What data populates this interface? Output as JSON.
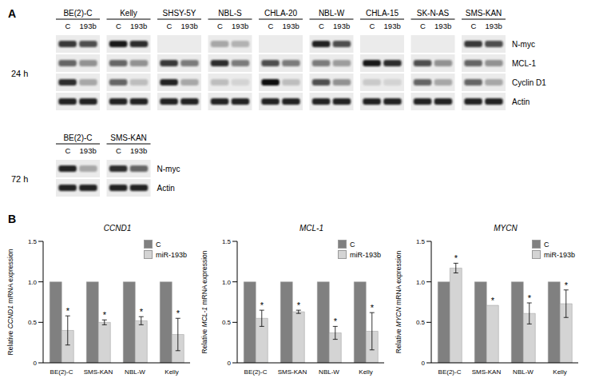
{
  "panel_a": {
    "label": "A",
    "blots": [
      {
        "time": "24 h",
        "lanes": [
          "C",
          "193b"
        ],
        "cell_lines": [
          "BE(2)-C",
          "Kelly",
          "SHSY-5Y",
          "NBL-S",
          "CHLA-20",
          "NBL-W",
          "CHLA-15",
          "SK-N-AS",
          "SMS-KAN"
        ],
        "proteins": [
          "N-myc",
          "MCL-1",
          "Cyclin D1",
          "Actin"
        ],
        "band_intensity": [
          [
            [
              0.8,
              0.7
            ],
            [
              0.95,
              0.85
            ],
            [
              0,
              0
            ],
            [
              0.3,
              0.25
            ],
            [
              0,
              0
            ],
            [
              0.9,
              0.7
            ],
            [
              0,
              0
            ],
            [
              0,
              0
            ],
            [
              0.8,
              0.7
            ]
          ],
          [
            [
              0.6,
              0.4
            ],
            [
              0.6,
              0.4
            ],
            [
              0.8,
              0.5
            ],
            [
              0.85,
              0.5
            ],
            [
              0.7,
              0.5
            ],
            [
              0.5,
              0.35
            ],
            [
              0.95,
              0.85
            ],
            [
              0.7,
              0.4
            ],
            [
              0.6,
              0.4
            ]
          ],
          [
            [
              0.85,
              0.3
            ],
            [
              0.6,
              0.2
            ],
            [
              0.9,
              0.3
            ],
            [
              0.2,
              0.1
            ],
            [
              1,
              0.2
            ],
            [
              0.7,
              0.4
            ],
            [
              0.15,
              0.1
            ],
            [
              0.6,
              0.3
            ],
            [
              0.6,
              0.3
            ]
          ],
          [
            [
              0.9,
              0.9
            ],
            [
              0.9,
              0.9
            ],
            [
              0.9,
              0.9
            ],
            [
              0.9,
              0.9
            ],
            [
              0.9,
              0.9
            ],
            [
              0.9,
              0.9
            ],
            [
              0.9,
              0.9
            ],
            [
              0.9,
              0.9
            ],
            [
              0.9,
              0.9
            ]
          ]
        ]
      },
      {
        "time": "72 h",
        "lanes": [
          "C",
          "193b"
        ],
        "cell_lines": [
          "BE(2)-C",
          "SMS-KAN"
        ],
        "proteins": [
          "N-myc",
          "Actin"
        ],
        "band_intensity": [
          [
            [
              0.9,
              0.3
            ],
            [
              0.85,
              0.6
            ]
          ],
          [
            [
              0.9,
              0.9
            ],
            [
              0.9,
              0.9
            ]
          ]
        ]
      }
    ]
  },
  "panel_b": {
    "label": "B"
  },
  "chart_data": [
    {
      "type": "bar",
      "title": "CCND1",
      "ylabel": "Relative CCND1 mRNA expression",
      "categories": [
        "BE(2)-C",
        "SMS-KAN",
        "NBL-W",
        "Kelly"
      ],
      "series": [
        {
          "name": "C",
          "color": "#808080",
          "values": [
            1,
            1,
            1,
            1
          ]
        },
        {
          "name": "miR-193b",
          "color": "#d4d4d4",
          "values": [
            0.4,
            0.5,
            0.52,
            0.35
          ],
          "errors": [
            0.18,
            0.03,
            0.05,
            0.2
          ],
          "significance": [
            "*",
            "*",
            "*",
            "*"
          ]
        }
      ],
      "ylim": [
        0,
        1.5
      ],
      "yticks": [
        0,
        0.5,
        {
          "value": 1,
          "label": "1.0"
        },
        1.5
      ],
      "legend": "upper right"
    },
    {
      "type": "bar",
      "title": "MCL-1",
      "ylabel": "Relative MCL-1 mRNA expression",
      "categories": [
        "BE(2)-C",
        "SMS-KAN",
        "NBL-W",
        "Kelly"
      ],
      "series": [
        {
          "name": "C",
          "color": "#808080",
          "values": [
            1,
            1,
            1,
            1
          ]
        },
        {
          "name": "miR-193b",
          "color": "#d4d4d4",
          "values": [
            0.55,
            0.63,
            0.37,
            0.39
          ],
          "errors": [
            0.1,
            0.02,
            0.08,
            0.23
          ],
          "significance": [
            "*",
            "*",
            "*",
            "*"
          ]
        }
      ],
      "ylim": [
        0,
        1.5
      ],
      "yticks": [
        0,
        0.5,
        {
          "value": 1,
          "label": "1.0"
        },
        1.5
      ],
      "legend": "upper right"
    },
    {
      "type": "bar",
      "title": "MYCN",
      "ylabel": "Relative MYCN mRNA expression",
      "categories": [
        "BE(2)-C",
        "SMS-KAN",
        "NBL-W",
        "Kelly"
      ],
      "series": [
        {
          "name": "C",
          "color": "#808080",
          "values": [
            1,
            1,
            1,
            1
          ]
        },
        {
          "name": "miR-193b",
          "color": "#d4d4d4",
          "values": [
            1.17,
            0.71,
            0.61,
            0.73
          ],
          "errors": [
            0.06,
            0,
            0.13,
            0.17
          ],
          "significance": [
            "*",
            "*",
            "*",
            "*"
          ]
        }
      ],
      "ylim": [
        0,
        1.5
      ],
      "yticks": [
        0,
        0.5,
        {
          "value": 1,
          "label": "1.0"
        },
        1.5
      ],
      "legend": "upper right"
    }
  ]
}
